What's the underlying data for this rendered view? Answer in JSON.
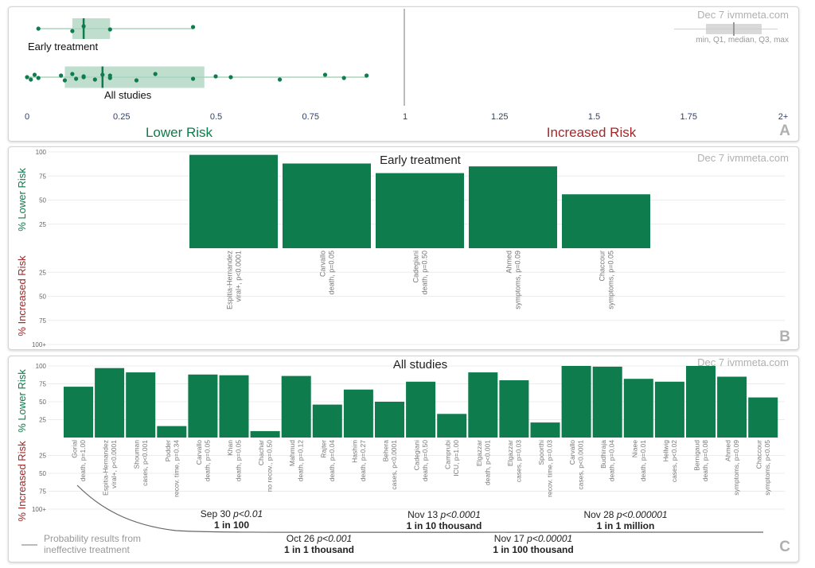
{
  "panels": {
    "a": {
      "letter": "A",
      "stamp": "Dec 7 ivmmeta.com",
      "legend_label": "min, Q1, median, Q3, max",
      "lower_label": "Lower Risk",
      "increased_label": "Increased Risk",
      "x_ticks": [
        "0",
        "0.25",
        "0.5",
        "0.75",
        "1",
        "1.25",
        "1.5",
        "1.75",
        "2+"
      ]
    },
    "b": {
      "letter": "B",
      "stamp": "Dec 7 ivmmeta.com",
      "title": "Early treatment",
      "lower_axis": "% Lower Risk",
      "increased_axis": "% Increased Risk"
    },
    "c": {
      "letter": "C",
      "stamp": "Dec 7 ivmmeta.com",
      "title": "All studies",
      "lower_axis": "% Lower Risk",
      "increased_axis": "% Increased Risk",
      "prob_legend": [
        "Probability results from",
        "ineffective treatment"
      ],
      "annotations": [
        {
          "id": "sep30",
          "date": "Sep 30",
          "p": "p<0.01",
          "odds": "1 in 100"
        },
        {
          "id": "oct26",
          "date": "Oct 26",
          "p": "p<0.001",
          "odds": "1 in 1 thousand"
        },
        {
          "id": "nov13",
          "date": "Nov 13",
          "p": "p<0.0001",
          "odds": "1 in 10 thousand"
        },
        {
          "id": "nov17",
          "date": "Nov 17",
          "p": "p<0.00001",
          "odds": "1 in 100 thousand"
        },
        {
          "id": "nov28",
          "date": "Nov 28",
          "p": "p<0.000001",
          "odds": "1 in 1 million"
        }
      ]
    }
  },
  "colors": {
    "green": "#0e7c4c",
    "red": "#a12828",
    "box_fill": "#a9d3bd",
    "axis_blue": "#2d3f6b",
    "grey": "#b0b0b0"
  },
  "chart_data": [
    {
      "type": "scatter",
      "title": "",
      "x_range": [
        0,
        2
      ],
      "groups": [
        {
          "label": "Early treatment",
          "min": 0.03,
          "q1": 0.12,
          "median": 0.15,
          "q3": 0.22,
          "max": 0.44,
          "points": [
            0.03,
            0.12,
            0.15,
            0.22,
            0.44
          ]
        },
        {
          "label": "All studies",
          "min": 0.0,
          "q1": 0.1,
          "median": 0.2,
          "q3": 0.47,
          "max": 0.9,
          "points": [
            0.0,
            0.01,
            0.02,
            0.03,
            0.09,
            0.1,
            0.12,
            0.13,
            0.15,
            0.15,
            0.18,
            0.2,
            0.22,
            0.22,
            0.29,
            0.34,
            0.44,
            0.5,
            0.54,
            0.67,
            0.79,
            0.84,
            0.9
          ]
        }
      ]
    },
    {
      "type": "bar",
      "title": "Early treatment",
      "ylabel": "% Lower Risk",
      "y_ticks_lower": [
        25,
        50,
        75,
        100
      ],
      "y_ticks_increased": [
        "25",
        "50",
        "75",
        "100+"
      ],
      "categories": [
        [
          "Espitia-Hernandez",
          "viral+, p<0.0001"
        ],
        [
          "Carvallo",
          "death, p=0.05"
        ],
        [
          "Cadegiani",
          "death, p=0.50"
        ],
        [
          "Ahmed",
          "symptoms, p=0.09"
        ],
        [
          "Chaccour",
          "symptoms, p=0.05"
        ]
      ],
      "values": [
        97,
        88,
        78,
        85,
        56
      ]
    },
    {
      "type": "bar",
      "title": "All studies",
      "ylabel": "% Lower Risk",
      "y_ticks_lower": [
        25,
        50,
        75,
        100
      ],
      "y_ticks_increased": [
        "25",
        "50",
        "75",
        "100+"
      ],
      "categories": [
        [
          "Gorial",
          "death, p=1.00"
        ],
        [
          "Espitia-Hernandez",
          "viral+, p<0.0001"
        ],
        [
          "Shouman",
          "cases, p<0.001"
        ],
        [
          "Podder",
          "recov. time, p=0.34"
        ],
        [
          "Carvallo",
          "death, p=0.05"
        ],
        [
          "Khan",
          "death, p=0.05"
        ],
        [
          "Chachar",
          "no recov., p=0.50"
        ],
        [
          "Mahmud",
          "death, p=0.12"
        ],
        [
          "Rajter",
          "death, p=0.04"
        ],
        [
          "Hashim",
          "death, p=0.27"
        ],
        [
          "Behera",
          "cases, p<0.0001"
        ],
        [
          "Cadegiani",
          "death, p=0.50"
        ],
        [
          "Camprubi",
          "ICU, p=1.00"
        ],
        [
          "Elgazzar",
          "death, p<0.001"
        ],
        [
          "Elgazzar",
          "cases, p=0.03"
        ],
        [
          "Spoorthi",
          "recov. time, p=0.03"
        ],
        [
          "Carvallo",
          "cases, p<0.0001"
        ],
        [
          "Budhiraja",
          "death, p=0.04"
        ],
        [
          "Niaee",
          "death, p=0.01"
        ],
        [
          "Hellwig",
          "cases, p<0.02"
        ],
        [
          "Bernigaud",
          "death, p=0.08"
        ],
        [
          "Ahmed",
          "symptoms, p=0.09"
        ],
        [
          "Chaccour",
          "symptoms, p<0.05"
        ]
      ],
      "values": [
        71,
        97,
        91,
        16,
        88,
        87,
        9,
        86,
        46,
        67,
        50,
        78,
        33,
        91,
        80,
        21,
        100,
        99,
        82,
        78,
        100,
        85,
        56
      ]
    }
  ]
}
